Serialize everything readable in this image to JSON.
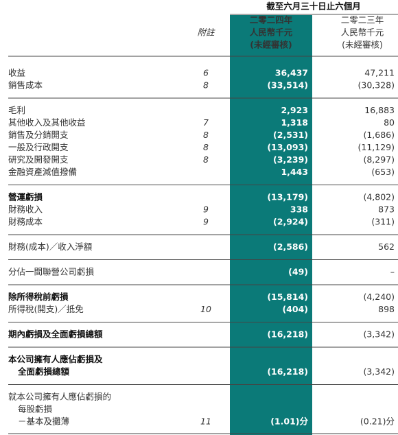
{
  "header": {
    "period": "截至六月三十日止六個月",
    "note_label": "附註",
    "columns": [
      {
        "lines": [
          "二零二四年",
          "人民幣千元",
          "(未經審核)"
        ]
      },
      {
        "lines": [
          "二零二三年",
          "人民幣千元",
          "(未經審核)"
        ]
      }
    ]
  },
  "sections": [
    {
      "rows": [
        {
          "label": [
            "收益"
          ],
          "note": "6",
          "current": "36,437",
          "prior": "47,211"
        },
        {
          "label": [
            "銷售成本"
          ],
          "note": "8",
          "current": "(33,514)",
          "prior": "(30,328)"
        }
      ]
    },
    {
      "rows": [
        {
          "label": [
            "毛利"
          ],
          "current": "2,923",
          "prior": "16,883"
        },
        {
          "label": [
            "其他收入及其他收益"
          ],
          "note": "7",
          "current": "1,318",
          "prior": "80"
        },
        {
          "label": [
            "銷售及分銷開支"
          ],
          "note": "8",
          "current": "(2,531)",
          "prior": "(1,686)"
        },
        {
          "label": [
            "一般及行政開支"
          ],
          "note": "8",
          "current": "(13,093)",
          "prior": "(11,129)"
        },
        {
          "label": [
            "研究及開發開支"
          ],
          "note": "8",
          "current": "(3,239)",
          "prior": "(8,297)"
        },
        {
          "label": [
            "金融資產減值撥備"
          ],
          "current": "1,443",
          "prior": "(653)"
        }
      ]
    },
    {
      "rows": [
        {
          "label": [
            "營運虧損"
          ],
          "bold": true,
          "current": "(13,179)",
          "prior": "(4,802)"
        },
        {
          "label": [
            "財務收入"
          ],
          "note": "9",
          "current": "338",
          "prior": "873"
        },
        {
          "label": [
            "財務成本"
          ],
          "note": "9",
          "current": "(2,924)",
          "prior": "(311)"
        }
      ]
    },
    {
      "rows": [
        {
          "label": [
            "財務(成本)／收入淨額"
          ],
          "current": "(2,586)",
          "prior": "562"
        }
      ]
    },
    {
      "rows": [
        {
          "label": [
            "分佔一間聯營公司虧損"
          ],
          "current": "(49)",
          "prior": "–"
        }
      ]
    },
    {
      "rows": [
        {
          "label": [
            "除所得稅前虧損"
          ],
          "bold": true,
          "current": "(15,814)",
          "prior": "(4,240)"
        },
        {
          "label": [
            "所得稅(開支)／抵免"
          ],
          "note": "10",
          "current": "(404)",
          "prior": "898"
        }
      ]
    },
    {
      "rows": [
        {
          "label": [
            "期內虧損及全面虧損總額"
          ],
          "bold": true,
          "current": "(16,218)",
          "prior": "(3,342)"
        }
      ]
    },
    {
      "rows": [
        {
          "label": [
            "本公司擁有人應佔虧損及",
            "全面虧損總額"
          ],
          "bold": true,
          "current": "(16,218)",
          "prior": "(3,342)"
        }
      ]
    },
    {
      "rows": [
        {
          "label": [
            "就本公司擁有人應佔虧損的",
            "每股虧損",
            "－基本及攤薄"
          ],
          "note": "11",
          "current": "(1.01)分",
          "prior": "(0.21)分"
        }
      ]
    }
  ]
}
